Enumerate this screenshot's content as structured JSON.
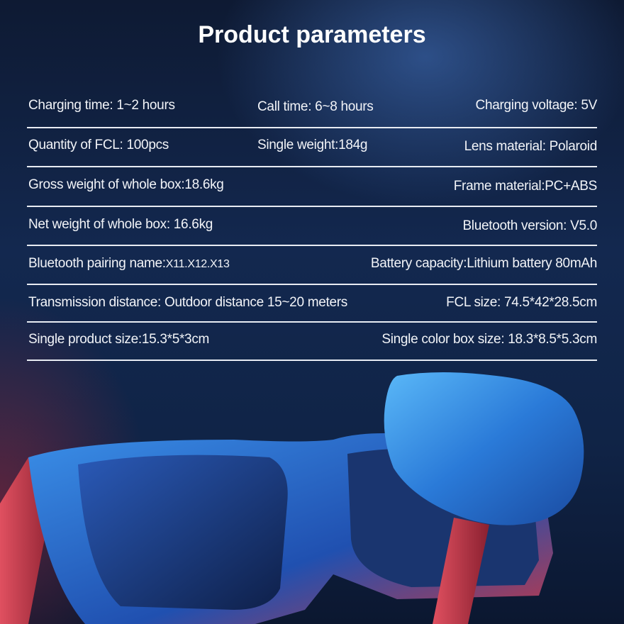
{
  "title": "Product parameters",
  "rows": [
    {
      "left": "Charging time:  1~2 hours",
      "middle": "Call time: 6~8 hours",
      "right": "Charging voltage:  5V"
    },
    {
      "left": "Quantity of FCL:  100pcs",
      "middle": "Single weight:184g",
      "right": "Lens material:  Polaroid"
    },
    {
      "left": "Gross weight of whole box:18.6kg",
      "right": "Frame material:PC+ABS"
    },
    {
      "left": "Net weight of whole box:  16.6kg",
      "right": "Bluetooth version: V5.0"
    },
    {
      "left": "Bluetooth pairing name:",
      "left_small": "X11.X12.X13",
      "right": "Battery capacity:Lithium battery 80mAh"
    },
    {
      "left": "Transmission distance:  Outdoor distance 15~20 meters",
      "right": "FCL size: 74.5*42*28.5cm"
    },
    {
      "left": "Single product size:15.3*5*3cm",
      "right": "Single color box size: 18.3*8.5*5.3cm"
    }
  ],
  "colors": {
    "background": "#13284f",
    "frame_blue": "#2a6fd0",
    "frame_red": "#d04050",
    "lens": "#1c3f8a"
  }
}
